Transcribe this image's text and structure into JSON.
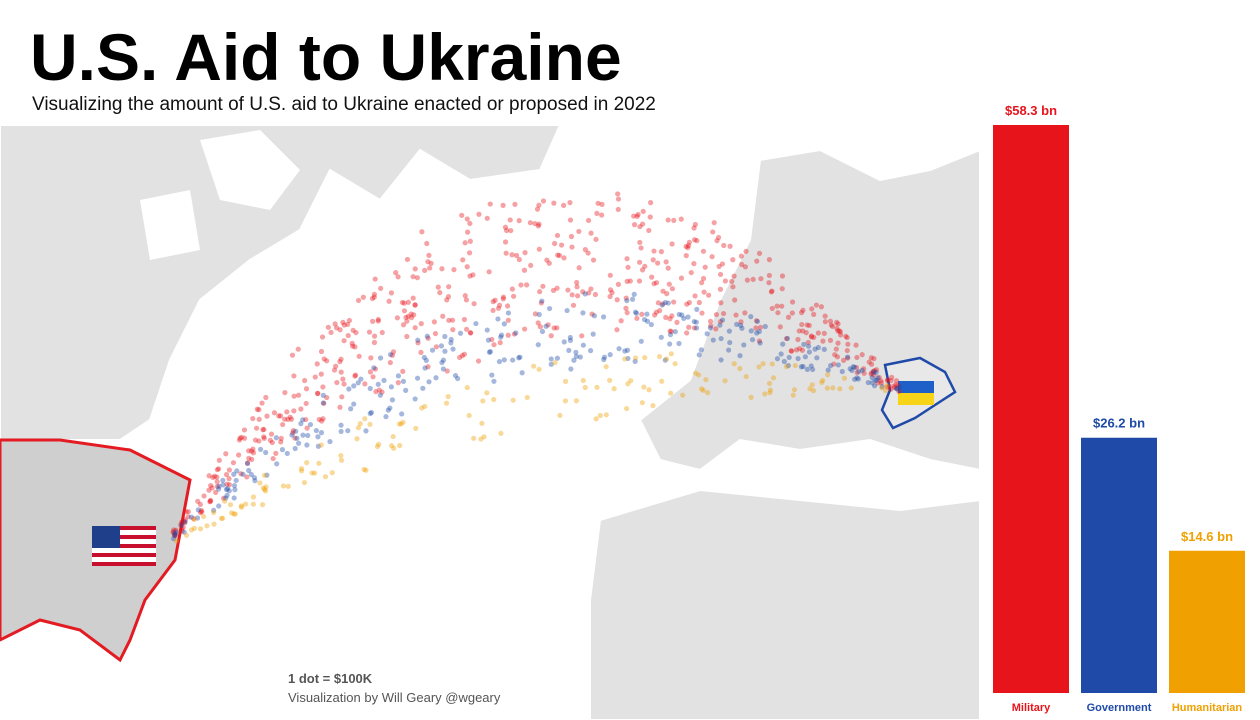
{
  "chart_data": {
    "type": "bar",
    "title": "U.S. Aid to Ukraine",
    "subtitle": "Visualizing the amount of U.S. aid to Ukraine enacted or proposed in 2022",
    "annotations": [
      "1 dot = $100K",
      "Visualization by Will Geary @wgeary"
    ],
    "categories": [
      "Military",
      "Government",
      "Humanitarian"
    ],
    "values": [
      58.3,
      26.2,
      14.6
    ],
    "value_labels": [
      "$58.3 bn",
      "$26.2 bn",
      "$14.6 bn"
    ],
    "colors": [
      "#e8141c",
      "#1f4aa8",
      "#f0a000"
    ]
  }
}
